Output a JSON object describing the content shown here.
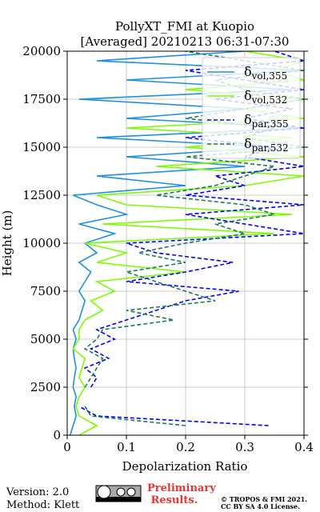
{
  "chart_data": {
    "type": "line",
    "title": "PollyXT_FMI at Kuopio",
    "subtitle": "[Averaged] 20210213 06:31-07:30",
    "x_label": "Depolarization Ratio",
    "y_label": "Height (m)",
    "xlim": [
      0,
      0.4
    ],
    "xticks": [
      0.0,
      0.1,
      0.2,
      0.3,
      0.4
    ],
    "ylim": [
      0,
      20000
    ],
    "yticks": [
      0,
      2500,
      5000,
      7500,
      10000,
      12500,
      15000,
      17500,
      20000
    ],
    "grid": true,
    "legend": "upper right",
    "heights": [
      0,
      500,
      1000,
      1500,
      2000,
      2500,
      3000,
      3500,
      4000,
      4500,
      5000,
      5500,
      6000,
      6500,
      7000,
      7500,
      8000,
      8500,
      9000,
      9500,
      10000,
      10500,
      11000,
      11500,
      12000,
      12500,
      13000,
      13500,
      14000,
      14500,
      15000,
      15500,
      16000,
      16500,
      17000,
      17500,
      18000,
      18500,
      19000,
      19500,
      20000
    ],
    "series": [
      {
        "name": "δvol,355",
        "color": "#1f8fe0",
        "dashed": false,
        "values": [
          0.005,
          0.01,
          0.015,
          0.012,
          0.015,
          0.01,
          0.012,
          0.015,
          0.012,
          0.01,
          0.015,
          0.01,
          0.02,
          0.025,
          0.03,
          0.02,
          0.03,
          0.04,
          0.02,
          0.05,
          0.03,
          0.08,
          0.02,
          0.1,
          0.05,
          0.01,
          0.2,
          0.05,
          0.3,
          0.1,
          0.35,
          0.05,
          0.4,
          0.1,
          0.3,
          0.02,
          0.38,
          0.1,
          0.4,
          0.05,
          0.3
        ]
      },
      {
        "name": "δvol,532",
        "color": "#7cfc00",
        "dashed": false,
        "values": [
          0.02,
          0.05,
          0.02,
          0.015,
          0.02,
          0.03,
          0.02,
          0.025,
          0.03,
          0.01,
          0.02,
          0.02,
          0.03,
          0.06,
          0.04,
          0.08,
          0.05,
          0.2,
          0.05,
          0.1,
          0.03,
          0.35,
          0.06,
          0.38,
          0.1,
          0.05,
          0.3,
          0.4,
          0.15,
          0.4,
          0.2,
          0.38,
          0.1,
          0.4,
          0.3,
          0.4,
          0.2,
          0.4,
          0.35,
          0.4,
          0.3
        ]
      },
      {
        "name": "δpar,355",
        "color": "#0000ff",
        "dashed": true,
        "values": [
          null,
          0.34,
          0.05,
          0.02,
          null,
          0.04,
          0.05,
          0.03,
          0.07,
          0.04,
          0.08,
          0.05,
          0.1,
          0.15,
          0.2,
          0.29,
          0.1,
          0.2,
          0.28,
          0.15,
          0.1,
          0.4,
          0.3,
          0.2,
          0.4,
          0.2,
          0.3,
          0.25,
          0.4,
          0.3,
          0.35,
          0.2,
          0.4,
          0.3,
          0.38,
          0.25,
          0.4,
          0.3,
          0.2,
          0.4,
          0.35
        ]
      },
      {
        "name": "δpar,532",
        "color": "#1a7a5a",
        "dashed": true,
        "values": [
          null,
          0.2,
          0.04,
          0.03,
          null,
          0.03,
          0.04,
          0.05,
          0.06,
          0.03,
          0.05,
          0.06,
          0.18,
          0.1,
          0.25,
          0.2,
          0.15,
          0.1,
          0.2,
          0.12,
          0.2,
          0.3,
          0.25,
          0.35,
          0.3,
          0.15,
          0.25,
          0.3,
          0.35,
          0.2,
          0.4,
          0.3,
          0.35,
          0.2,
          0.3,
          0.4,
          0.3,
          0.25,
          0.4,
          0.3,
          0.2
        ]
      }
    ]
  },
  "footer": {
    "version": "Version: 2.0",
    "method": "Method: Klett",
    "status": "Preliminary Results.",
    "copyright": "© TROPOS & FMI 2021.",
    "license": "CC BY SA 4.0 License."
  }
}
